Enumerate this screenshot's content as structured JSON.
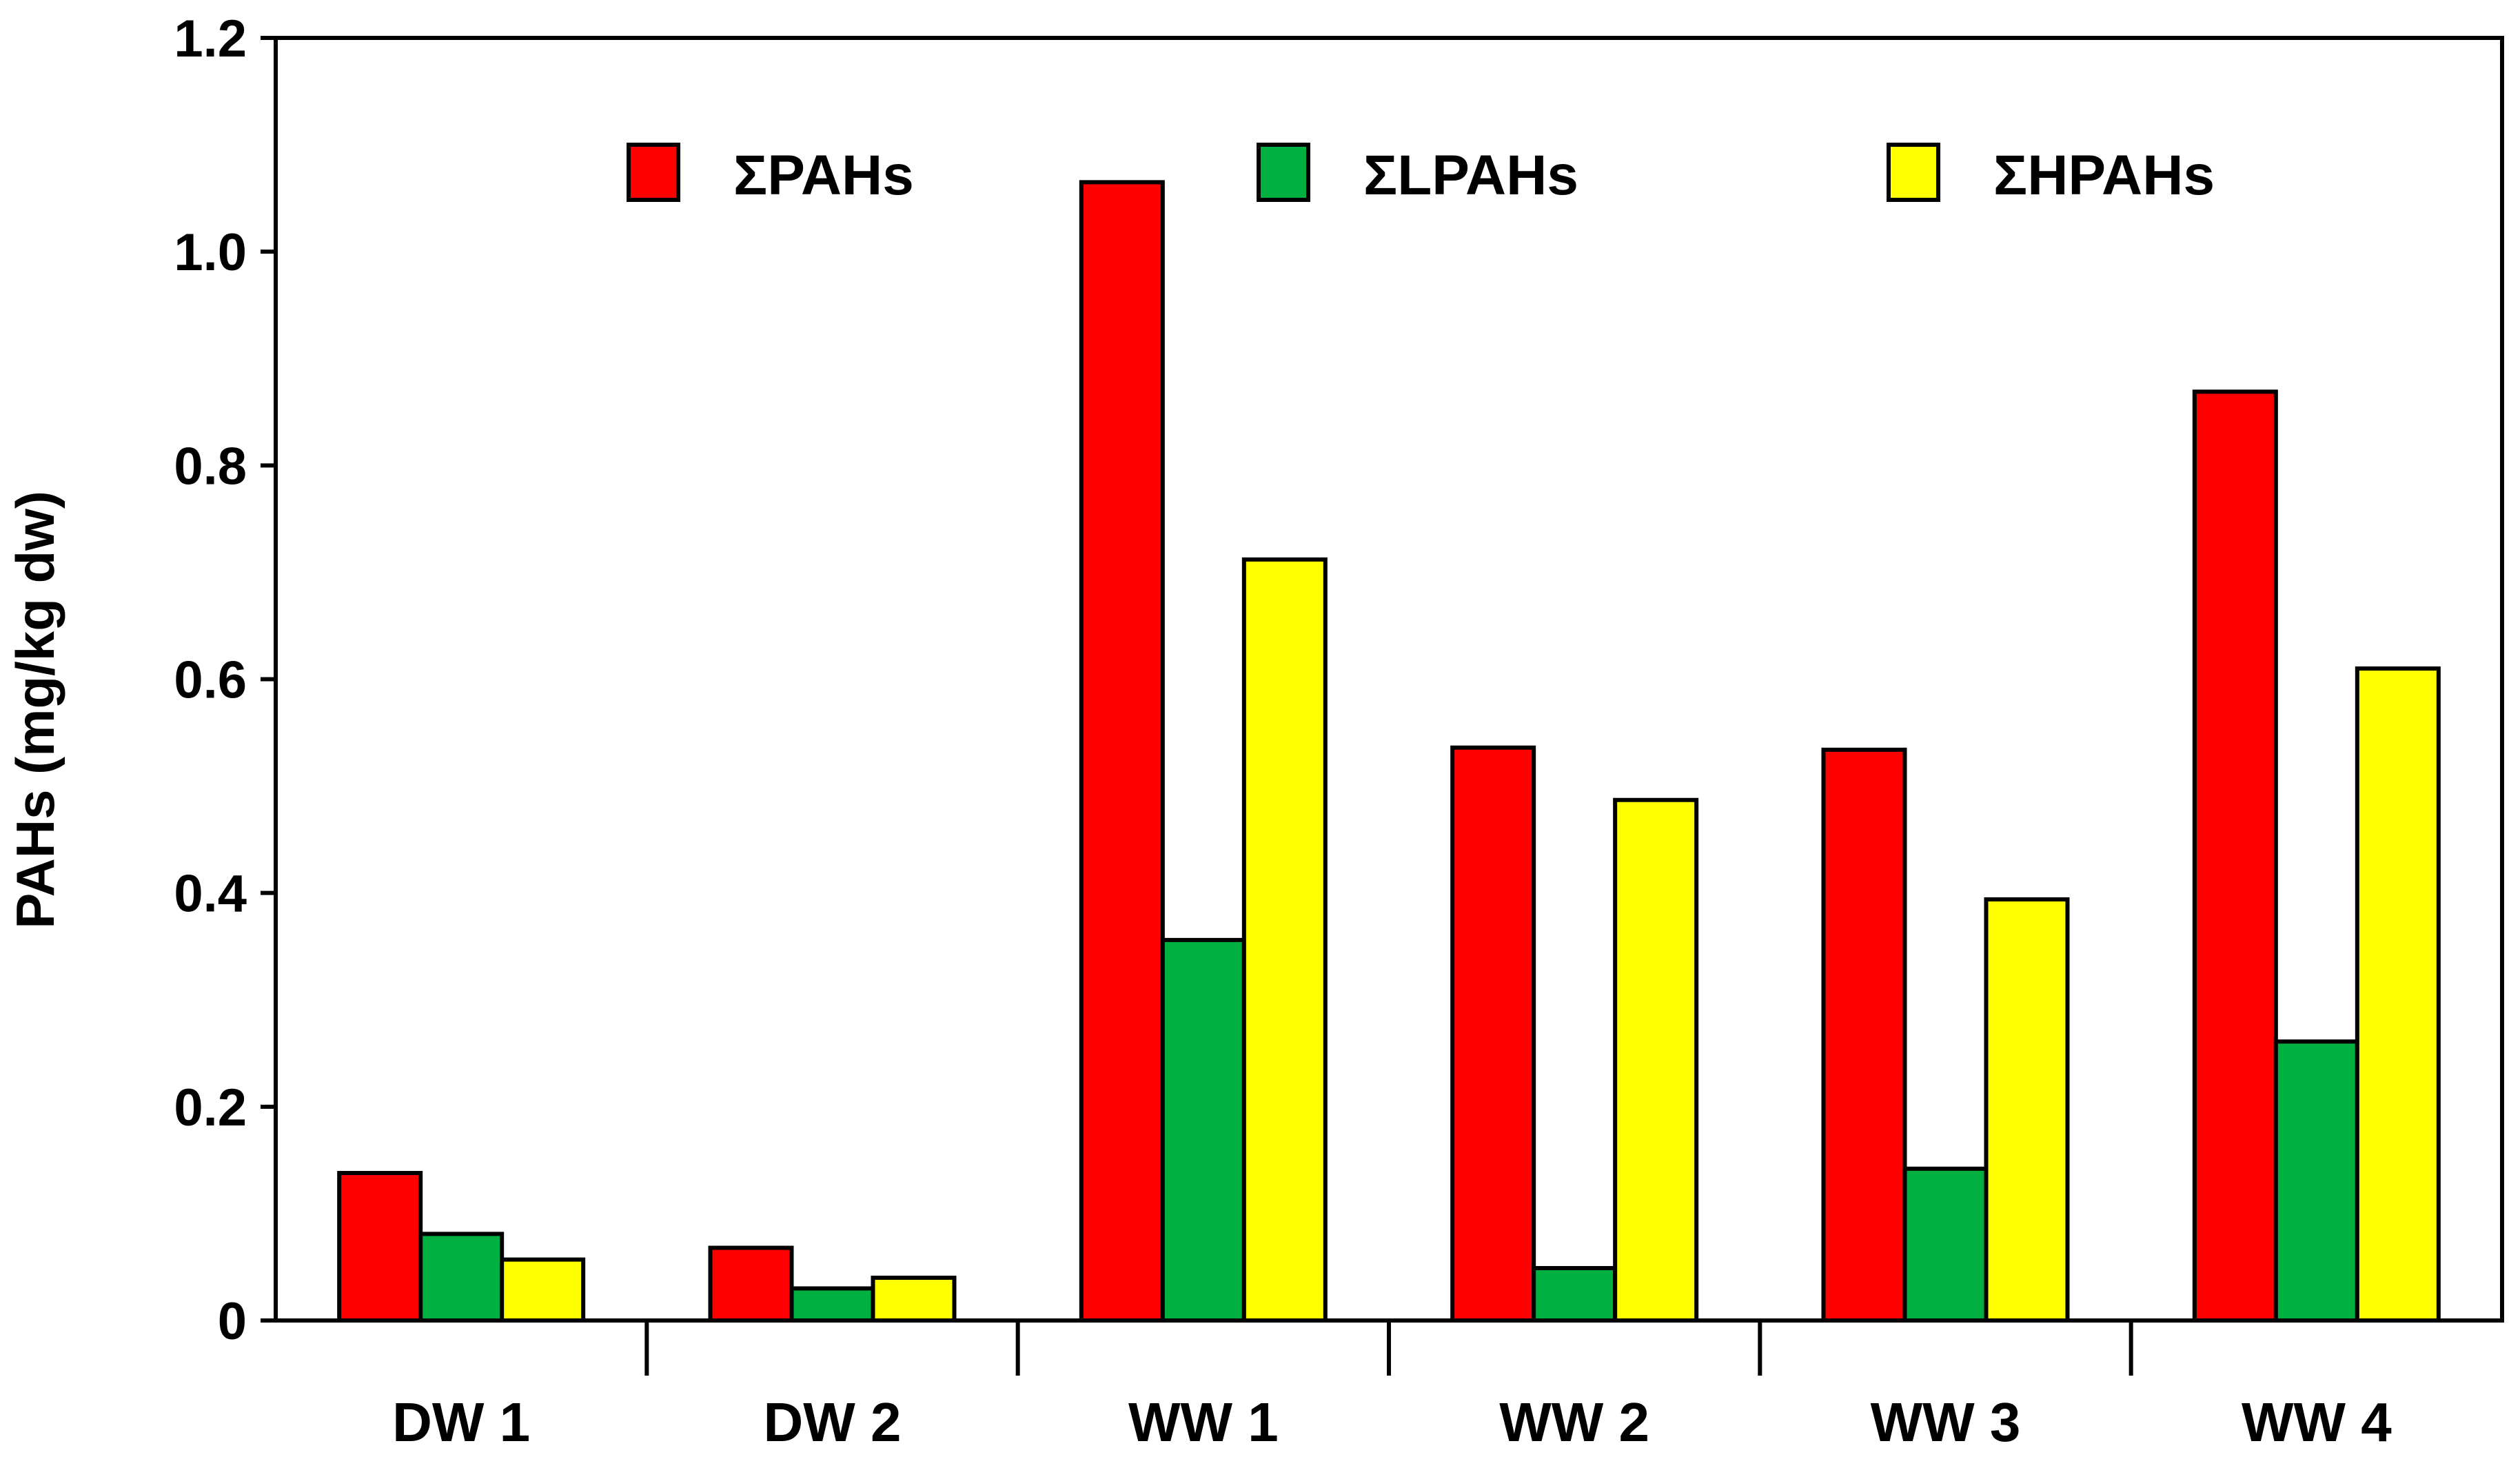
{
  "chart_data": {
    "type": "bar",
    "title": "",
    "xlabel": "",
    "ylabel": "PAHs (mg/kg dw)",
    "ylim": [
      0,
      1.2
    ],
    "yticks": [
      0,
      0.2,
      0.4,
      0.6,
      0.8,
      1.0,
      1.2
    ],
    "ytick_labels": [
      "0",
      "0.2",
      "0.4",
      "0.6",
      "0.8",
      "1.0",
      "1.2"
    ],
    "categories": [
      "DW 1",
      "DW 2",
      "WW 1",
      "WW 2",
      "WW 3",
      "WW 4"
    ],
    "series": [
      {
        "name": "ΣPAHs",
        "color": "#ff0000",
        "values": [
          0.138,
          0.068,
          1.065,
          0.536,
          0.534,
          0.869
        ]
      },
      {
        "name": "ΣLPAHs",
        "color": "#00b040",
        "values": [
          0.081,
          0.03,
          0.356,
          0.049,
          0.142,
          0.261
        ]
      },
      {
        "name": "ΣHPAHs",
        "color": "#ffff00",
        "values": [
          0.057,
          0.04,
          0.712,
          0.487,
          0.394,
          0.61
        ]
      }
    ],
    "legend_position": "top",
    "grid": false,
    "frame": "box"
  }
}
